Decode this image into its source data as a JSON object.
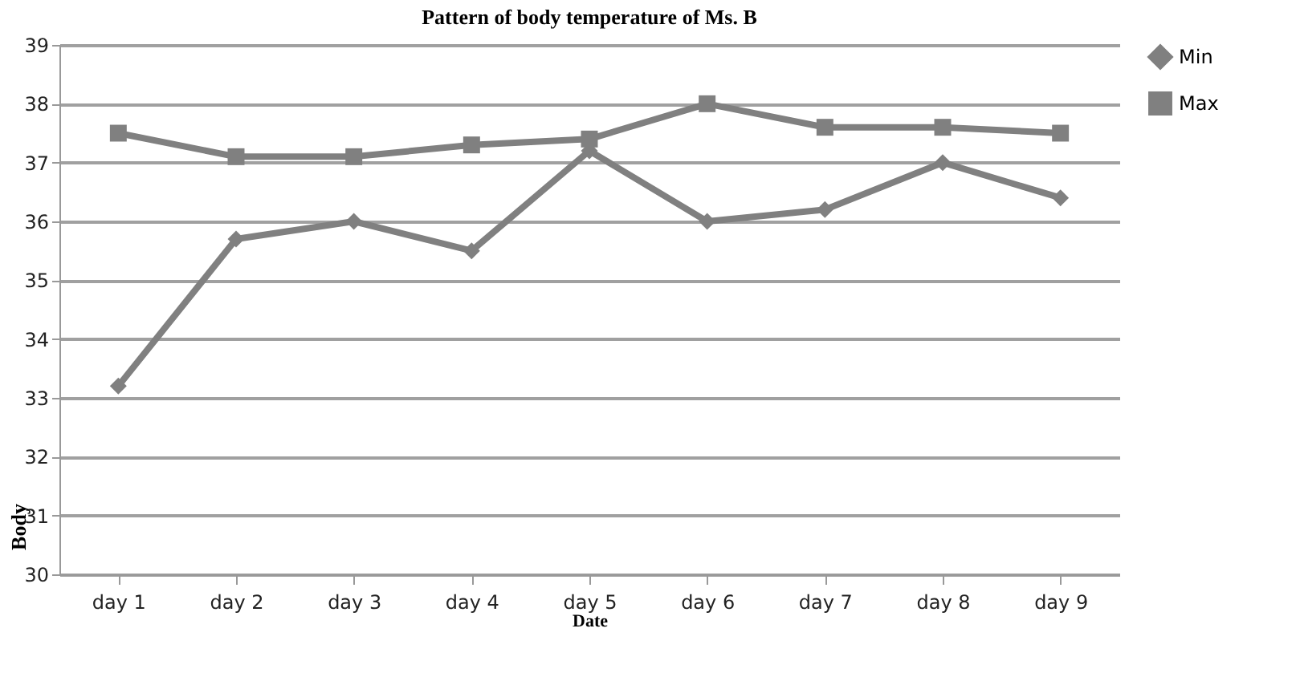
{
  "chart_data": {
    "type": "line",
    "title": "Pattern of body temperature of Ms. B",
    "xlabel": "Date",
    "ylabel": "Body",
    "categories": [
      "day 1",
      "day 2",
      "day 3",
      "day 4",
      "day 5",
      "day 6",
      "day 7",
      "day 8",
      "day 9"
    ],
    "series": [
      {
        "name": "Min",
        "color": "#808080",
        "marker": "diamond",
        "values": [
          33.2,
          35.7,
          36.0,
          35.5,
          37.2,
          36.0,
          36.2,
          37.0,
          36.4
        ]
      },
      {
        "name": "Max",
        "color": "#808080",
        "marker": "square",
        "values": [
          37.5,
          37.1,
          37.1,
          37.3,
          37.4,
          38.0,
          37.6,
          37.6,
          37.5
        ]
      }
    ],
    "ylim": [
      30,
      39
    ],
    "yticks": [
      30,
      31,
      32,
      33,
      34,
      35,
      36,
      37,
      38,
      39
    ],
    "grid": "y",
    "legend": "right",
    "line_style": "solid"
  }
}
